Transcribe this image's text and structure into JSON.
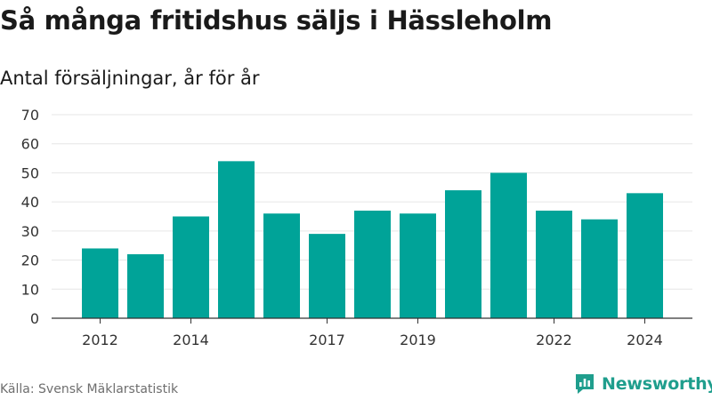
{
  "header": {
    "title": "Så många fritidshus säljs i Hässleholm",
    "subtitle": "Antal försäljningar, år för år"
  },
  "footer": {
    "source": "Källa: Svensk Mäklarstatistik",
    "brand": "Newsworthy"
  },
  "colors": {
    "bar": "#00a398",
    "brand": "#1f9e8d",
    "grid": "#e6e6e6",
    "axis": "#333333"
  },
  "chart_data": {
    "type": "bar",
    "categories": [
      "2012",
      "2013",
      "2014",
      "2015",
      "2016",
      "2017",
      "2018",
      "2019",
      "2020",
      "2021",
      "2022",
      "2023",
      "2024"
    ],
    "x_tick_labels": [
      "2012",
      "",
      "2014",
      "",
      "",
      "2017",
      "",
      "2019",
      "",
      "",
      "2022",
      "",
      "2024"
    ],
    "values": [
      24,
      22,
      35,
      54,
      36,
      29,
      37,
      36,
      44,
      50,
      37,
      34,
      43
    ],
    "ylim": [
      0,
      70
    ],
    "yticks": [
      0,
      10,
      20,
      30,
      40,
      50,
      60,
      70
    ],
    "grid": true,
    "xlabel": "",
    "ylabel": ""
  }
}
